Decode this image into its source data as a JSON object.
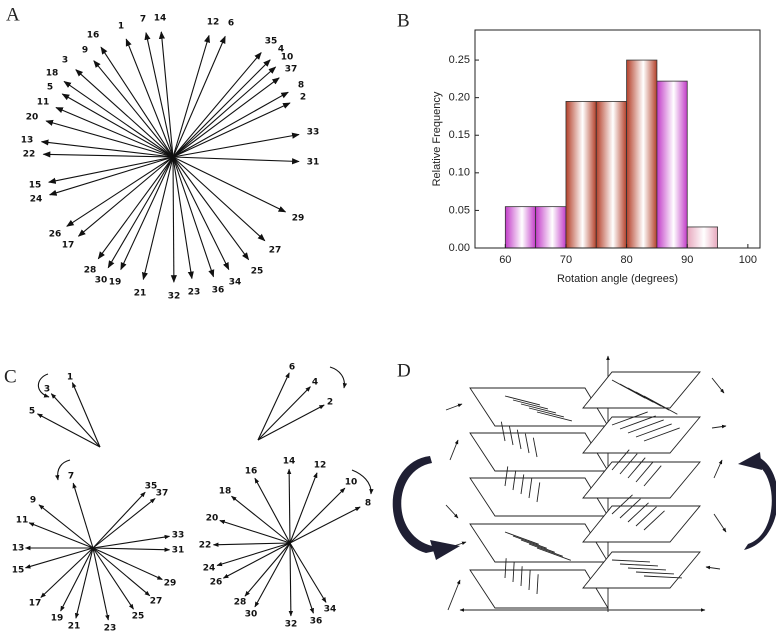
{
  "panel_labels": [
    "A",
    "B",
    "C",
    "D"
  ],
  "panel_a": {
    "arrow_labels": [
      "1",
      "7",
      "14",
      "12",
      "6",
      "16",
      "9",
      "3",
      "18",
      "5",
      "11",
      "20",
      "13",
      "22",
      "15",
      "24",
      "26",
      "17",
      "28",
      "30",
      "19",
      "21",
      "32",
      "23",
      "36",
      "34",
      "25",
      "27",
      "29",
      "31",
      "33",
      "8",
      "2",
      "35",
      "4",
      "10",
      "37"
    ]
  },
  "chart_data": {
    "type": "histogram",
    "x_label": "Rotation angle (degrees)",
    "y_label": "Relative Frequency",
    "bins": [
      60,
      65,
      70,
      75,
      80,
      85,
      90,
      95
    ],
    "counts": [
      0.055,
      0.055,
      0.195,
      0.195,
      0.25,
      0.222,
      0.028
    ],
    "colors": [
      "#c23cc8",
      "#c23cc8",
      "#b4402a",
      "#b4402a",
      "#b4402a",
      "#c23cc8",
      "#e7a7bd"
    ],
    "xlim": [
      55,
      102
    ],
    "ylim": [
      0,
      0.29
    ],
    "xticks": [
      60,
      70,
      80,
      90,
      100
    ],
    "yticks": [
      {
        "value": 0,
        "label": "0.00"
      },
      {
        "value": 0.05,
        "label": "0.05"
      },
      {
        "value": 0.1,
        "label": "0.10"
      },
      {
        "value": 0.15,
        "label": "0.15"
      },
      {
        "value": 0.2,
        "label": "0.20"
      },
      {
        "value": 0.25,
        "label": "0.25"
      }
    ]
  },
  "panel_c": {
    "top_left": [
      "1",
      "3",
      "5"
    ],
    "top_right": [
      "6",
      "4",
      "2"
    ],
    "bottom_left": [
      "7",
      "35",
      "37",
      "9",
      "11",
      "13",
      "15",
      "17",
      "19",
      "21",
      "23",
      "25",
      "27",
      "29",
      "31",
      "33"
    ],
    "bottom_right": [
      "16",
      "14",
      "12",
      "10",
      "8",
      "18",
      "20",
      "22",
      "24",
      "26",
      "28",
      "30",
      "32",
      "36",
      "34"
    ]
  }
}
